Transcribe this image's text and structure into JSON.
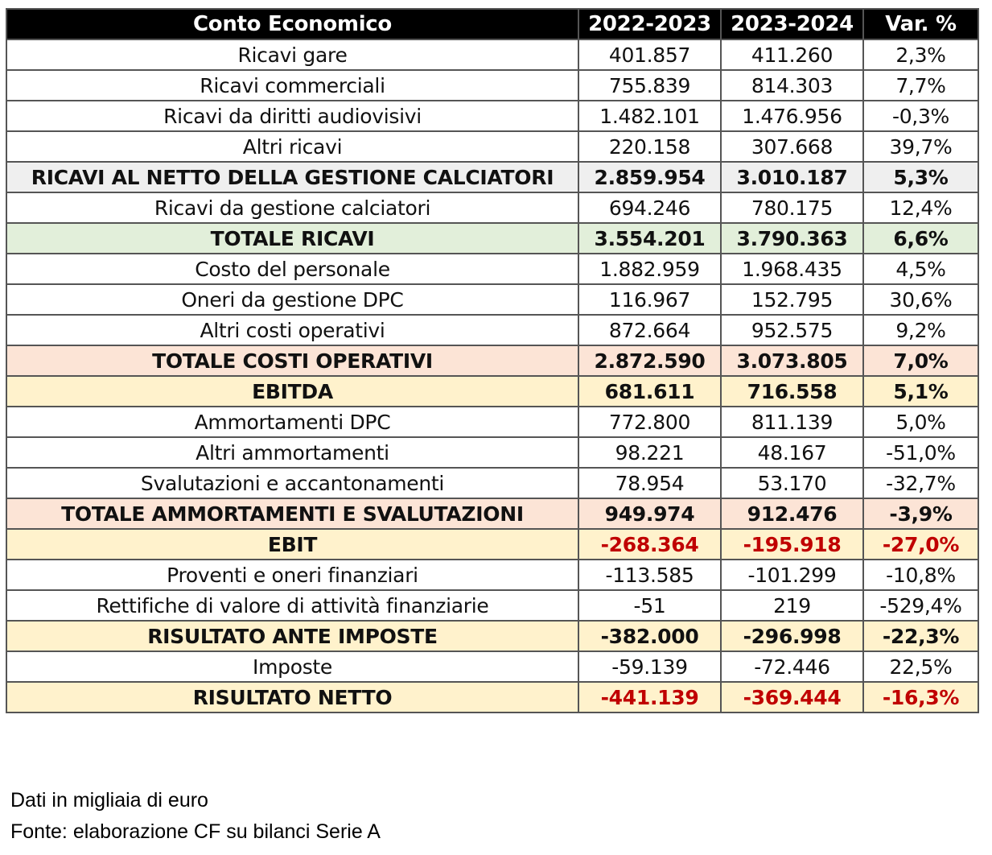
{
  "table": {
    "headers": [
      "Conto Economico",
      "2022-2023",
      "2023-2024",
      "Var. %"
    ],
    "rows": [
      {
        "label": "Ricavi gare",
        "v1": "401.857",
        "v2": "411.260",
        "var": "2,3%",
        "style": ""
      },
      {
        "label": "Ricavi commerciali",
        "v1": "755.839",
        "v2": "814.303",
        "var": "7,7%",
        "style": ""
      },
      {
        "label": "Ricavi da diritti audiovisivi",
        "v1": "1.482.101",
        "v2": "1.476.956",
        "var": "-0,3%",
        "style": ""
      },
      {
        "label": "Altri ricavi",
        "v1": "220.158",
        "v2": "307.668",
        "var": "39,7%",
        "style": ""
      },
      {
        "label": "RICAVI AL NETTO DELLA GESTIONE CALCIATORI",
        "v1": "2.859.954",
        "v2": "3.010.187",
        "var": "5,3%",
        "style": "b grey"
      },
      {
        "label": "Ricavi da gestione calciatori",
        "v1": "694.246",
        "v2": "780.175",
        "var": "12,4%",
        "style": ""
      },
      {
        "label": "TOTALE RICAVI",
        "v1": "3.554.201",
        "v2": "3.790.363",
        "var": "6,6%",
        "style": "b green"
      },
      {
        "label": "Costo del personale",
        "v1": "1.882.959",
        "v2": "1.968.435",
        "var": "4,5%",
        "style": ""
      },
      {
        "label": "Oneri da gestione DPC",
        "v1": "116.967",
        "v2": "152.795",
        "var": "30,6%",
        "style": ""
      },
      {
        "label": "Altri costi operativi",
        "v1": "872.664",
        "v2": "952.575",
        "var": "9,2%",
        "style": ""
      },
      {
        "label": "TOTALE COSTI OPERATIVI",
        "v1": "2.872.590",
        "v2": "3.073.805",
        "var": "7,0%",
        "style": "b pink"
      },
      {
        "label": "EBITDA",
        "v1": "681.611",
        "v2": "716.558",
        "var": "5,1%",
        "style": "b yellow"
      },
      {
        "label": "Ammortamenti DPC",
        "v1": "772.800",
        "v2": "811.139",
        "var": "5,0%",
        "style": ""
      },
      {
        "label": "Altri ammortamenti",
        "v1": "98.221",
        "v2": "48.167",
        "var": "-51,0%",
        "style": ""
      },
      {
        "label": "Svalutazioni e accantonamenti",
        "v1": "78.954",
        "v2": "53.170",
        "var": "-32,7%",
        "style": ""
      },
      {
        "label": "TOTALE AMMORTAMENTI E SVALUTAZIONI",
        "v1": "949.974",
        "v2": "912.476",
        "var": "-3,9%",
        "style": "b pink"
      },
      {
        "label": "EBIT",
        "v1": "-268.364",
        "v2": "-195.918",
        "var": "-27,0%",
        "style": "b yellow red"
      },
      {
        "label": "Proventi e oneri finanziari",
        "v1": "-113.585",
        "v2": "-101.299",
        "var": "-10,8%",
        "style": ""
      },
      {
        "label": "Rettifiche di valore di attività finanziarie",
        "v1": "-51",
        "v2": "219",
        "var": "-529,4%",
        "style": ""
      },
      {
        "label": "RISULTATO ANTE IMPOSTE",
        "v1": "-382.000",
        "v2": "-296.998",
        "var": "-22,3%",
        "style": "b yellow"
      },
      {
        "label": "Imposte",
        "v1": "-59.139",
        "v2": "-72.446",
        "var": "22,5%",
        "style": ""
      },
      {
        "label": "RISULTATO NETTO",
        "v1": "-441.139",
        "v2": "-369.444",
        "var": "-16,3%",
        "style": "b yellow red"
      }
    ]
  },
  "colors": {
    "grey": "#efefef",
    "green": "#e2efda",
    "pink": "#fce4d6",
    "yellow": "#fff2cc",
    "negative_red": "#c00000"
  },
  "notes": {
    "unit": "Dati in migliaia di euro",
    "source": "Fonte: elaborazione CF su bilanci Serie A"
  }
}
